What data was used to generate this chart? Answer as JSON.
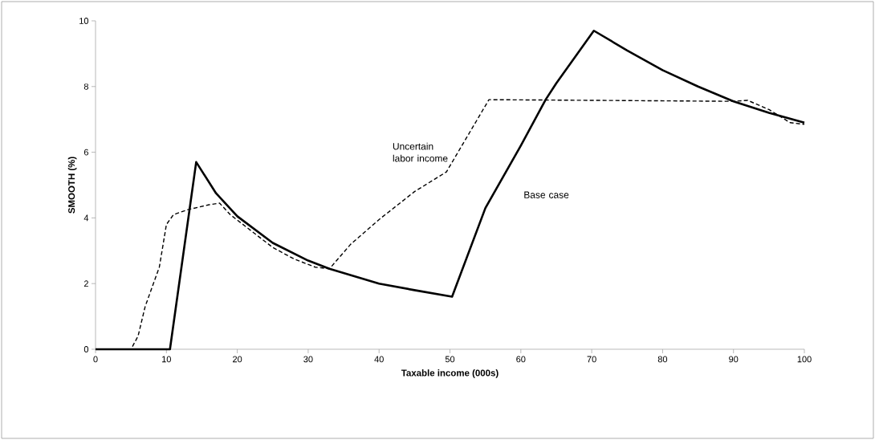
{
  "chart_data": {
    "type": "line",
    "xlabel": "Taxable income (000s)",
    "ylabel": "SMOOTH (%)",
    "xlim": [
      0,
      100
    ],
    "xticks": [
      0,
      10,
      20,
      30,
      40,
      50,
      60,
      70,
      80,
      90,
      100
    ],
    "ylim": [
      0,
      10
    ],
    "yticks": [
      0,
      2,
      4,
      6,
      8,
      10
    ],
    "grid": false,
    "series": [
      {
        "name": "Base case",
        "color": "#000000",
        "line_style": "solid",
        "x": [
          0,
          10.5,
          14.2,
          17,
          20,
          25,
          30,
          33,
          40,
          45,
          50.3,
          55,
          60,
          63.5,
          65,
          70.3,
          75,
          80,
          85,
          90,
          95,
          100
        ],
        "values": [
          0,
          0,
          5.7,
          4.75,
          4.05,
          3.24,
          2.7,
          2.45,
          2.0,
          1.8,
          1.6,
          4.3,
          6.2,
          7.6,
          8.1,
          9.7,
          9.1,
          8.5,
          8.0,
          7.55,
          7.2,
          6.9
        ]
      },
      {
        "name": "Uncertain labor income",
        "color": "#000000",
        "line_style": "dashed",
        "x": [
          0,
          5,
          6,
          7,
          8,
          9,
          10,
          11,
          13,
          16,
          17.5,
          19,
          22,
          25,
          28,
          31,
          33,
          36,
          40,
          45,
          49.5,
          55.5,
          70,
          90,
          92,
          95,
          98,
          100
        ],
        "values": [
          0,
          0,
          0.4,
          1.3,
          1.9,
          2.5,
          3.8,
          4.1,
          4.25,
          4.4,
          4.45,
          4.1,
          3.6,
          3.1,
          2.75,
          2.5,
          2.45,
          3.2,
          3.95,
          4.8,
          5.4,
          7.6,
          7.58,
          7.55,
          7.58,
          7.3,
          6.9,
          6.85
        ]
      }
    ]
  }
}
